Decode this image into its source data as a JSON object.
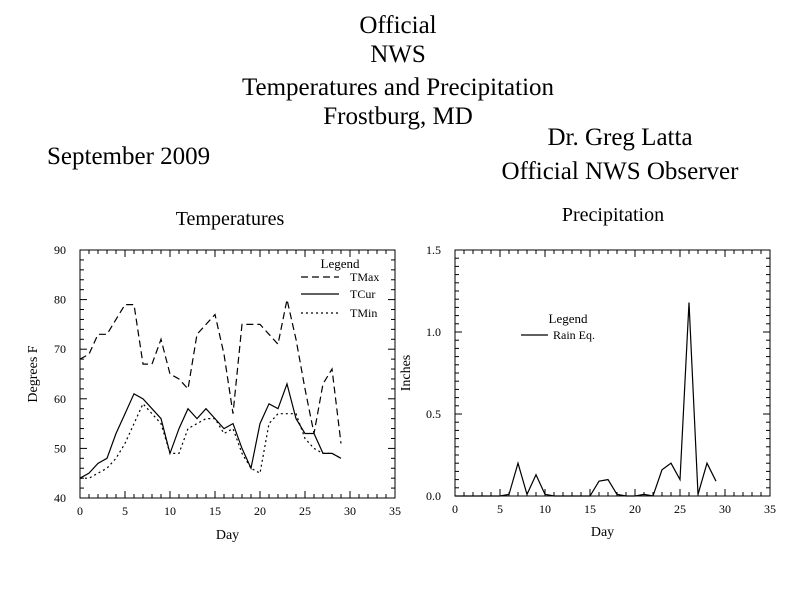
{
  "header": {
    "line1": "Official",
    "line2": "NWS",
    "line3": "Temperatures and Precipitation",
    "line4": "Frostburg, MD"
  },
  "month": "September 2009",
  "observer": {
    "name": "Dr. Greg Latta",
    "role": "Official NWS Observer"
  },
  "chart_data": [
    {
      "type": "line",
      "title": "Temperatures",
      "xlabel": "Day",
      "ylabel": "Degrees F",
      "xlim": [
        0,
        35
      ],
      "ylim": [
        40,
        90
      ],
      "xticks": [
        0,
        5,
        10,
        15,
        20,
        25,
        30,
        35
      ],
      "yticks": [
        40,
        50,
        60,
        70,
        80,
        90
      ],
      "x_minor_step": 1,
      "y_minor_step": 2,
      "legend_title": "Legend",
      "legend_placement": "top-right",
      "grid": false,
      "x": [
        0,
        1,
        2,
        3,
        4,
        5,
        6,
        7,
        8,
        9,
        10,
        11,
        12,
        13,
        14,
        15,
        16,
        17,
        18,
        19,
        20,
        21,
        22,
        23,
        24,
        25,
        26,
        27,
        28,
        29
      ],
      "series": [
        {
          "name": "TMax",
          "dash": "dashed",
          "values": [
            68,
            69,
            73,
            73,
            76,
            79,
            79,
            67,
            67,
            72,
            65,
            64,
            62,
            73,
            75,
            77,
            69,
            57,
            75,
            75,
            75,
            73,
            71,
            80,
            72,
            62,
            53,
            63,
            66,
            51
          ]
        },
        {
          "name": "TCur",
          "dash": "solid",
          "values": [
            44,
            45,
            47,
            48,
            53,
            57,
            61,
            60,
            58,
            56,
            49,
            54,
            58,
            56,
            58,
            56,
            54,
            55,
            50,
            46,
            55,
            59,
            58,
            63,
            56,
            53,
            53,
            49,
            49,
            48
          ]
        },
        {
          "name": "TMin",
          "dash": "dotted",
          "values": [
            44,
            44,
            45,
            46,
            48,
            51,
            55,
            59,
            57,
            55,
            49,
            49,
            54,
            55,
            56,
            56,
            53,
            54,
            49,
            46,
            45,
            55,
            57,
            57,
            57,
            52,
            50,
            49,
            49,
            48
          ]
        }
      ]
    },
    {
      "type": "line",
      "title": "Precipitation",
      "xlabel": "Day",
      "ylabel": "Inches",
      "xlim": [
        0,
        35
      ],
      "ylim": [
        0.0,
        1.5
      ],
      "xticks": [
        0,
        5,
        10,
        15,
        20,
        25,
        30,
        35
      ],
      "yticks": [
        0.0,
        0.5,
        1.0,
        1.5
      ],
      "ytick_labels": [
        "0.0",
        "0.5",
        "1.0",
        "1.5"
      ],
      "x_minor_step": 1,
      "y_minor_step": 0.05,
      "legend_title": "Legend",
      "legend_placement": "upper-center",
      "grid": false,
      "x": [
        0,
        1,
        2,
        3,
        4,
        5,
        6,
        7,
        8,
        9,
        10,
        11,
        12,
        13,
        14,
        15,
        16,
        17,
        18,
        19,
        20,
        21,
        22,
        23,
        24,
        25,
        26,
        27,
        28,
        29
      ],
      "series": [
        {
          "name": "Rain Eq.",
          "dash": "solid",
          "values": [
            0,
            0,
            0,
            0,
            0,
            0,
            0.01,
            0.2,
            0.01,
            0.13,
            0.01,
            0,
            0,
            0,
            0,
            0,
            0.09,
            0.1,
            0.01,
            0,
            0,
            0.01,
            0,
            0.16,
            0.2,
            0.1,
            1.18,
            0.01,
            0.2,
            0.09
          ]
        }
      ]
    }
  ]
}
